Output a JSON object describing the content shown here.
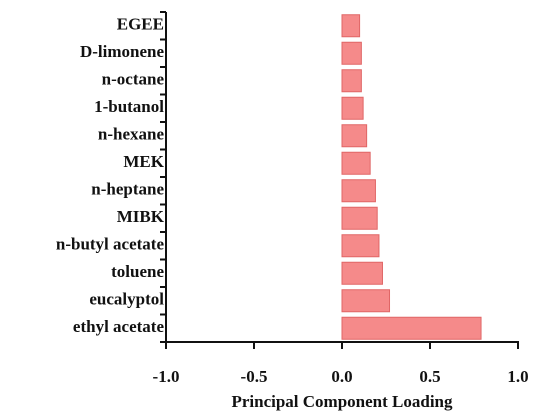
{
  "chart_data": {
    "type": "bar",
    "orientation": "horizontal",
    "xlabel": "Principal Component Loading",
    "categories": [
      "EGEE",
      "D-limonene",
      "n-octane",
      "1-butanol",
      "n-hexane",
      "MEK",
      "n-heptane",
      "MIBK",
      "n-butyl acetate",
      "toluene",
      "eucalyptol",
      "ethyl acetate"
    ],
    "values": [
      0.1,
      0.11,
      0.11,
      0.12,
      0.14,
      0.16,
      0.19,
      0.2,
      0.21,
      0.23,
      0.27,
      0.79
    ],
    "color": "#f58a8a",
    "edgecolor": "#e06666",
    "xlim": [
      -1.0,
      1.0
    ],
    "xticks": [
      {
        "value": -1.0,
        "label": "-1.0"
      },
      -0.5,
      {
        "value": 0,
        "label": "0.0"
      },
      0.5,
      {
        "value": 1.0,
        "label": "1.0"
      }
    ],
    "grid": false
  }
}
